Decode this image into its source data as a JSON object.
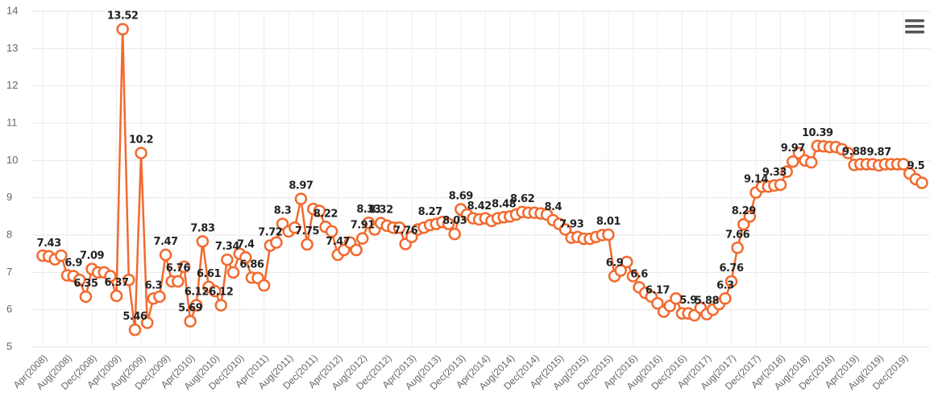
{
  "chart_data": {
    "type": "line",
    "categories": [
      "Apr(2008)",
      null,
      null,
      null,
      "Aug(2008)",
      null,
      null,
      null,
      "Dec(2008)",
      null,
      null,
      null,
      "Apr(2009)",
      null,
      null,
      null,
      "Aug(2009)",
      null,
      null,
      null,
      "Dec(2009)",
      null,
      null,
      null,
      "Apr(2010)",
      null,
      null,
      null,
      "Aug(2010)",
      null,
      null,
      null,
      "Dec(2010)",
      null,
      null,
      null,
      "Apr(2011)",
      null,
      null,
      null,
      "Aug(2011)",
      null,
      null,
      null,
      "Dec(2011)",
      null,
      null,
      null,
      "Apr(2012)",
      null,
      null,
      null,
      "Aug(2012)",
      null,
      null,
      null,
      "Dec(2012)",
      null,
      null,
      null,
      "Apr(2013)",
      null,
      null,
      null,
      "Aug(2013)",
      null,
      null,
      null,
      "Dec(2013)",
      null,
      null,
      null,
      "Apr(2014)",
      null,
      null,
      null,
      "Aug(2014)",
      null,
      null,
      null,
      "Dec(2014)",
      null,
      null,
      null,
      "Apr(2015)",
      null,
      null,
      null,
      "Aug(2015)",
      null,
      null,
      null,
      "Dec(2015)",
      null,
      null,
      null,
      "Apr(2016)",
      null,
      null,
      null,
      "Aug(2016)",
      null,
      null,
      null,
      "Dec(2016)",
      null,
      null,
      null,
      "Apr(2017)",
      null,
      null,
      null,
      "Aug(2017)",
      null,
      null,
      null,
      "Dec(2017)",
      null,
      null,
      null,
      "Apr(2018)",
      null,
      null,
      null,
      "Aug(2018)",
      null,
      null,
      null,
      "Dec(2018)",
      null,
      null,
      null,
      "Apr(2019)",
      null,
      null,
      null,
      "Aug(2019)",
      null,
      null,
      null,
      "Dec(2019)",
      null,
      null,
      null
    ],
    "values": [
      7.45,
      7.43,
      7.35,
      7.45,
      6.92,
      6.9,
      6.8,
      6.35,
      7.09,
      7.0,
      7.0,
      6.9,
      6.37,
      13.52,
      6.8,
      5.46,
      10.2,
      5.65,
      6.3,
      6.35,
      7.47,
      6.76,
      6.76,
      7.15,
      5.69,
      6.12,
      7.83,
      6.61,
      6.5,
      6.12,
      7.34,
      7.0,
      7.5,
      7.4,
      6.86,
      6.85,
      6.65,
      7.72,
      7.8,
      8.3,
      8.1,
      8.2,
      8.97,
      7.75,
      8.7,
      8.65,
      8.22,
      8.1,
      7.47,
      7.6,
      7.8,
      7.6,
      7.91,
      8.33,
      8.15,
      8.32,
      8.25,
      8.2,
      8.2,
      7.76,
      7.95,
      8.15,
      8.2,
      8.27,
      8.3,
      8.35,
      8.3,
      8.03,
      8.69,
      8.55,
      8.45,
      8.42,
      8.45,
      8.38,
      8.45,
      8.48,
      8.5,
      8.55,
      8.62,
      8.6,
      8.6,
      8.58,
      8.55,
      8.4,
      8.3,
      8.15,
      7.93,
      7.95,
      7.9,
      7.9,
      7.95,
      8.0,
      8.01,
      6.9,
      7.05,
      7.28,
      6.9,
      6.6,
      6.45,
      6.35,
      6.17,
      5.95,
      6.1,
      6.3,
      5.9,
      5.9,
      5.85,
      6.05,
      5.88,
      6.0,
      6.15,
      6.3,
      6.76,
      7.66,
      8.29,
      8.5,
      9.14,
      9.3,
      9.3,
      9.33,
      9.35,
      9.7,
      9.97,
      10.2,
      10.0,
      9.95,
      10.39,
      10.38,
      10.36,
      10.36,
      10.3,
      10.2,
      9.88,
      9.9,
      9.9,
      9.9,
      9.87,
      9.9,
      9.9,
      9.9,
      9.9,
      9.65,
      9.5,
      9.4
    ],
    "value_labels": [
      null,
      "7.43",
      null,
      null,
      null,
      "6.9",
      null,
      "6.35",
      "7.09",
      null,
      null,
      null,
      "6.37",
      "13.52",
      null,
      "5.46",
      "10.2",
      null,
      "6.3",
      null,
      "7.47",
      null,
      "6.76",
      null,
      "5.69",
      "6.12",
      "7.83",
      "6.61",
      null,
      "6.12",
      "7.34",
      null,
      null,
      "7.4",
      "6.86",
      null,
      null,
      "7.72",
      null,
      "8.3",
      null,
      null,
      "8.97",
      "7.75",
      null,
      null,
      "8.22",
      null,
      "7.47",
      null,
      null,
      null,
      "7.91",
      "8.33",
      null,
      "8.32",
      null,
      null,
      null,
      "7.76",
      null,
      null,
      null,
      "8.27",
      null,
      null,
      null,
      "8.03",
      "8.69",
      null,
      null,
      "8.42",
      null,
      null,
      null,
      "8.48",
      null,
      null,
      "8.62",
      null,
      null,
      null,
      null,
      "8.4",
      null,
      null,
      "7.93",
      null,
      null,
      null,
      null,
      null,
      "8.01",
      "6.9",
      null,
      null,
      null,
      "6.6",
      null,
      null,
      "6.17",
      null,
      null,
      null,
      null,
      "5.9",
      null,
      null,
      "5.88",
      null,
      null,
      "6.3",
      "6.76",
      "7.66",
      "8.29",
      null,
      "9.14",
      null,
      null,
      "9.33",
      null,
      null,
      "9.97",
      null,
      null,
      null,
      "10.39",
      null,
      null,
      null,
      null,
      null,
      "9.88",
      null,
      null,
      null,
      "9.87",
      null,
      null,
      null,
      null,
      null,
      "9.5",
      null
    ],
    "color": "#f26a2e",
    "ylim": [
      5,
      14
    ],
    "yticks": [
      5,
      6,
      7,
      8,
      9,
      10,
      11,
      12,
      13,
      14
    ],
    "grid": true
  }
}
